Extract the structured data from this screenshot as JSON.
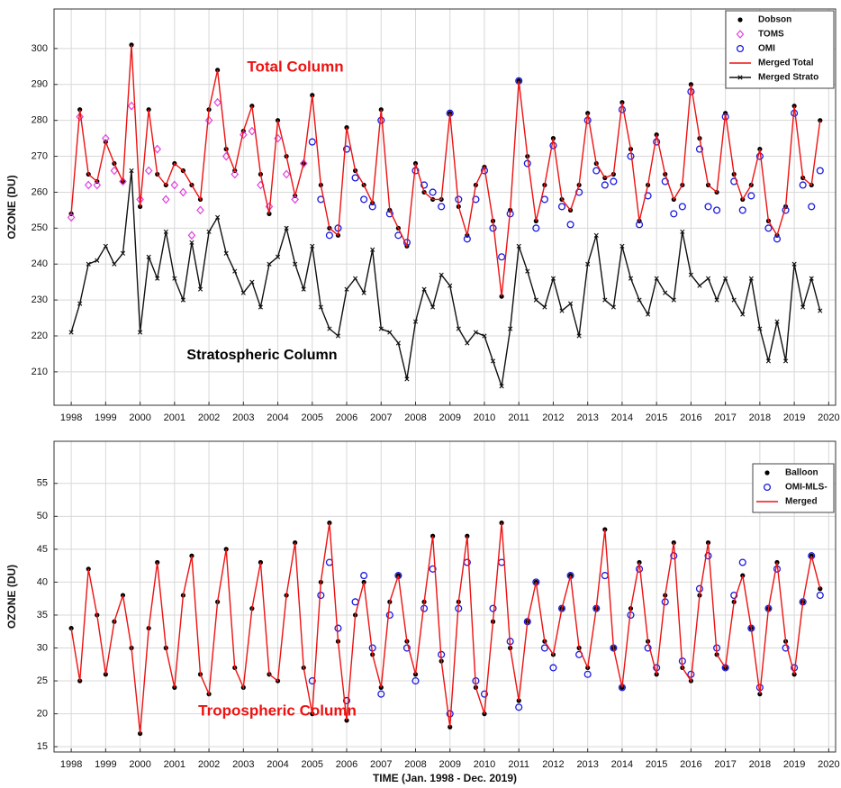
{
  "chart_data": [
    {
      "type": "line",
      "title": null,
      "ylabel": "OZONE (DU)",
      "xlim": [
        1997.5,
        2020.2
      ],
      "ylim": [
        200.7,
        311
      ],
      "xticks": [
        1998,
        1999,
        2000,
        2001,
        2002,
        2003,
        2004,
        2005,
        2006,
        2007,
        2008,
        2009,
        2010,
        2011,
        2012,
        2013,
        2014,
        2015,
        2016,
        2017,
        2018,
        2019,
        2020
      ],
      "yticks": [
        210,
        220,
        230,
        240,
        250,
        260,
        270,
        280,
        290,
        300
      ],
      "grid": true,
      "legend": "upper right",
      "annotations": [
        {
          "text": "Total Column",
          "color": "#ee1111"
        },
        {
          "text": "Stratospheric Column",
          "color": "#000000"
        }
      ],
      "x": [
        1998,
        1998.25,
        1998.5,
        1998.75,
        1999,
        1999.25,
        1999.5,
        1999.75,
        2000,
        2000.25,
        2000.5,
        2000.75,
        2001,
        2001.25,
        2001.5,
        2001.75,
        2002,
        2002.25,
        2002.5,
        2002.75,
        2003,
        2003.25,
        2003.5,
        2003.75,
        2004,
        2004.25,
        2004.5,
        2004.75,
        2005,
        2005.25,
        2005.5,
        2005.75,
        2006,
        2006.25,
        2006.5,
        2006.75,
        2007,
        2007.25,
        2007.5,
        2007.75,
        2008,
        2008.25,
        2008.5,
        2008.75,
        2009,
        2009.25,
        2009.5,
        2009.75,
        2010,
        2010.25,
        2010.5,
        2010.75,
        2011,
        2011.25,
        2011.5,
        2011.75,
        2012,
        2012.25,
        2012.5,
        2012.75,
        2013,
        2013.25,
        2013.5,
        2013.75,
        2014,
        2014.25,
        2014.5,
        2014.75,
        2015,
        2015.25,
        2015.5,
        2015.75,
        2016,
        2016.25,
        2016.5,
        2016.75,
        2017,
        2017.25,
        2017.5,
        2017.75,
        2018,
        2018.25,
        2018.5,
        2018.75,
        2019,
        2019.25,
        2019.5,
        2019.75
      ],
      "series": [
        {
          "name": "Dobson",
          "color": "#000000",
          "marker": "dot",
          "line": false,
          "values": [
            254,
            283,
            265,
            263,
            274,
            268,
            263,
            301,
            256,
            283,
            265,
            262,
            268,
            266,
            262,
            258,
            283,
            294,
            272,
            266,
            277,
            284,
            265,
            254,
            280,
            270,
            259,
            268,
            287,
            262,
            250,
            248,
            278,
            266,
            262,
            257,
            283,
            255,
            250,
            245,
            268,
            260,
            258,
            258,
            282,
            256,
            248,
            262,
            267,
            252,
            231,
            255,
            291,
            270,
            252,
            262,
            275,
            258,
            255,
            262,
            282,
            268,
            264,
            265,
            285,
            272,
            252,
            262,
            276,
            265,
            258,
            262,
            290,
            275,
            262,
            260,
            282,
            265,
            258,
            262,
            272,
            252,
            248,
            256,
            284,
            264,
            262,
            280
          ]
        },
        {
          "name": "TOMS",
          "color": "#e040e0",
          "marker": "diamond",
          "line": false,
          "x": [
            1998,
            1998.25,
            1998.5,
            1998.75,
            1999,
            1999.25,
            1999.5,
            1999.75,
            2000,
            2000.25,
            2000.5,
            2000.75,
            2001,
            2001.25,
            2001.5,
            2001.75,
            2002,
            2002.25,
            2002.5,
            2002.75,
            2003,
            2003.25,
            2003.5,
            2003.75,
            2004,
            2004.25,
            2004.5,
            2004.75
          ],
          "values": [
            253,
            281,
            262,
            262,
            275,
            266,
            263,
            284,
            258,
            266,
            272,
            258,
            262,
            260,
            248,
            255,
            280,
            285,
            270,
            265,
            276,
            277,
            262,
            256,
            275,
            265,
            258,
            268
          ]
        },
        {
          "name": "OMI",
          "color": "#1a1adf",
          "marker": "circle",
          "line": false,
          "x": [
            2005,
            2005.25,
            2005.5,
            2005.75,
            2006,
            2006.25,
            2006.5,
            2006.75,
            2007,
            2007.25,
            2007.5,
            2007.75,
            2008,
            2008.25,
            2008.5,
            2008.75,
            2009,
            2009.25,
            2009.5,
            2009.75,
            2010,
            2010.25,
            2010.5,
            2010.75,
            2011,
            2011.25,
            2011.5,
            2011.75,
            2012,
            2012.25,
            2012.5,
            2012.75,
            2013,
            2013.25,
            2013.5,
            2013.75,
            2014,
            2014.25,
            2014.5,
            2014.75,
            2015,
            2015.25,
            2015.5,
            2015.75,
            2016,
            2016.25,
            2016.5,
            2016.75,
            2017,
            2017.25,
            2017.5,
            2017.75,
            2018,
            2018.25,
            2018.5,
            2018.75,
            2019,
            2019.25,
            2019.5,
            2019.75
          ],
          "values": [
            274,
            258,
            248,
            250,
            272,
            264,
            258,
            256,
            280,
            254,
            248,
            246,
            266,
            262,
            260,
            256,
            282,
            258,
            247,
            258,
            266,
            250,
            242,
            254,
            291,
            268,
            250,
            258,
            273,
            256,
            251,
            260,
            280,
            266,
            262,
            263,
            283,
            270,
            251,
            259,
            274,
            263,
            254,
            256,
            288,
            272,
            256,
            255,
            281,
            263,
            255,
            259,
            270,
            250,
            247,
            255,
            282,
            262,
            256,
            266
          ]
        },
        {
          "name": "Merged Total",
          "color": "#ee1111",
          "marker": null,
          "line": true,
          "values": [
            254,
            283,
            265,
            263,
            274,
            268,
            263,
            301,
            256,
            283,
            265,
            262,
            268,
            266,
            262,
            258,
            283,
            294,
            272,
            266,
            277,
            284,
            265,
            254,
            280,
            270,
            259,
            268,
            287,
            262,
            250,
            248,
            278,
            266,
            262,
            257,
            283,
            255,
            250,
            245,
            268,
            260,
            258,
            258,
            282,
            256,
            248,
            262,
            267,
            252,
            231,
            255,
            291,
            270,
            252,
            262,
            275,
            258,
            255,
            262,
            282,
            268,
            264,
            265,
            285,
            272,
            252,
            262,
            276,
            265,
            258,
            262,
            290,
            275,
            262,
            260,
            282,
            265,
            258,
            262,
            272,
            252,
            248,
            256,
            284,
            264,
            262,
            280
          ]
        },
        {
          "name": "Merged Strato",
          "color": "#111111",
          "marker": "x",
          "line": true,
          "values": [
            221,
            229,
            240,
            241,
            245,
            240,
            243,
            266,
            221,
            242,
            236,
            249,
            236,
            230,
            246,
            233,
            249,
            253,
            243,
            238,
            232,
            235,
            228,
            240,
            242,
            250,
            240,
            233,
            245,
            228,
            222,
            220,
            233,
            236,
            232,
            244,
            222,
            221,
            218,
            208,
            224,
            233,
            228,
            237,
            234,
            222,
            218,
            221,
            220,
            213,
            206,
            222,
            245,
            238,
            230,
            228,
            236,
            227,
            229,
            220,
            240,
            248,
            230,
            228,
            245,
            236,
            230,
            226,
            236,
            232,
            230,
            249,
            237,
            234,
            236,
            230,
            236,
            230,
            226,
            236,
            222,
            213,
            224,
            213,
            240,
            228,
            236,
            227
          ]
        }
      ]
    },
    {
      "type": "line",
      "ylabel": "OZONE (DU)",
      "xlabel": "TIME (Jan. 1998 - Dec. 2019)",
      "xlim": [
        1997.5,
        2020.2
      ],
      "ylim": [
        14.2,
        61.4
      ],
      "xticks": [
        1998,
        1999,
        2000,
        2001,
        2002,
        2003,
        2004,
        2005,
        2006,
        2007,
        2008,
        2009,
        2010,
        2011,
        2012,
        2013,
        2014,
        2015,
        2016,
        2017,
        2018,
        2019,
        2020
      ],
      "yticks": [
        15,
        20,
        25,
        30,
        35,
        40,
        45,
        50,
        55
      ],
      "grid": true,
      "legend": "upper right",
      "annotations": [
        {
          "text": "Tropospheric Column",
          "color": "#ee1111"
        }
      ],
      "x": [
        1998,
        1998.25,
        1998.5,
        1998.75,
        1999,
        1999.25,
        1999.5,
        1999.75,
        2000,
        2000.25,
        2000.5,
        2000.75,
        2001,
        2001.25,
        2001.5,
        2001.75,
        2002,
        2002.25,
        2002.5,
        2002.75,
        2003,
        2003.25,
        2003.5,
        2003.75,
        2004,
        2004.25,
        2004.5,
        2004.75,
        2005,
        2005.25,
        2005.5,
        2005.75,
        2006,
        2006.25,
        2006.5,
        2006.75,
        2007,
        2007.25,
        2007.5,
        2007.75,
        2008,
        2008.25,
        2008.5,
        2008.75,
        2009,
        2009.25,
        2009.5,
        2009.75,
        2010,
        2010.25,
        2010.5,
        2010.75,
        2011,
        2011.25,
        2011.5,
        2011.75,
        2012,
        2012.25,
        2012.5,
        2012.75,
        2013,
        2013.25,
        2013.5,
        2013.75,
        2014,
        2014.25,
        2014.5,
        2014.75,
        2015,
        2015.25,
        2015.5,
        2015.75,
        2016,
        2016.25,
        2016.5,
        2016.75,
        2017,
        2017.25,
        2017.5,
        2017.75,
        2018,
        2018.25,
        2018.5,
        2018.75,
        2019,
        2019.25,
        2019.5,
        2019.75
      ],
      "series": [
        {
          "name": "Balloon",
          "color": "#000000",
          "marker": "dot",
          "line": false,
          "values": [
            33,
            25,
            42,
            35,
            26,
            34,
            38,
            30,
            17,
            33,
            43,
            30,
            24,
            38,
            44,
            26,
            23,
            37,
            45,
            27,
            24,
            36,
            43,
            26,
            25,
            38,
            46,
            27,
            20,
            40,
            49,
            31,
            19,
            35,
            40,
            29,
            24,
            37,
            41,
            31,
            26,
            37,
            47,
            28,
            18,
            37,
            47,
            24,
            20,
            34,
            49,
            30,
            22,
            34,
            40,
            31,
            29,
            36,
            41,
            30,
            27,
            36,
            48,
            30,
            24,
            36,
            43,
            31,
            26,
            38,
            46,
            27,
            25,
            38,
            46,
            29,
            27,
            37,
            41,
            33,
            23,
            36,
            43,
            31,
            26,
            37,
            44,
            39
          ]
        },
        {
          "name": "OMI-MLS-",
          "color": "#1a1adf",
          "marker": "circle",
          "line": false,
          "x": [
            2005,
            2005.25,
            2005.5,
            2005.75,
            2006,
            2006.25,
            2006.5,
            2006.75,
            2007,
            2007.25,
            2007.5,
            2007.75,
            2008,
            2008.25,
            2008.5,
            2008.75,
            2009,
            2009.25,
            2009.5,
            2009.75,
            2010,
            2010.25,
            2010.5,
            2010.75,
            2011,
            2011.25,
            2011.5,
            2011.75,
            2012,
            2012.25,
            2012.5,
            2012.75,
            2013,
            2013.25,
            2013.5,
            2013.75,
            2014,
            2014.25,
            2014.5,
            2014.75,
            2015,
            2015.25,
            2015.5,
            2015.75,
            2016,
            2016.25,
            2016.5,
            2016.75,
            2017,
            2017.25,
            2017.5,
            2017.75,
            2018,
            2018.25,
            2018.5,
            2018.75,
            2019,
            2019.25,
            2019.5,
            2019.75
          ],
          "values": [
            25,
            38,
            43,
            33,
            22,
            37,
            41,
            30,
            23,
            35,
            41,
            30,
            25,
            36,
            42,
            29,
            20,
            36,
            43,
            25,
            23,
            36,
            43,
            31,
            21,
            34,
            40,
            30,
            27,
            36,
            41,
            29,
            26,
            36,
            41,
            30,
            24,
            35,
            42,
            30,
            27,
            37,
            44,
            28,
            26,
            39,
            44,
            30,
            27,
            38,
            43,
            33,
            24,
            36,
            42,
            30,
            27,
            37,
            44,
            38
          ]
        },
        {
          "name": "Merged",
          "color": "#ee1111",
          "marker": null,
          "line": true,
          "values": [
            33,
            25,
            42,
            35,
            26,
            34,
            38,
            30,
            17,
            33,
            43,
            30,
            24,
            38,
            44,
            26,
            23,
            37,
            45,
            27,
            24,
            36,
            43,
            26,
            25,
            38,
            46,
            27,
            20,
            40,
            49,
            31,
            19,
            35,
            40,
            29,
            24,
            37,
            41,
            31,
            26,
            37,
            47,
            28,
            18,
            37,
            47,
            24,
            20,
            34,
            49,
            30,
            22,
            34,
            40,
            31,
            29,
            36,
            41,
            30,
            27,
            36,
            48,
            30,
            24,
            36,
            43,
            31,
            26,
            38,
            46,
            27,
            25,
            38,
            46,
            29,
            27,
            37,
            41,
            33,
            23,
            36,
            43,
            31,
            26,
            37,
            44,
            39
          ]
        }
      ]
    }
  ]
}
